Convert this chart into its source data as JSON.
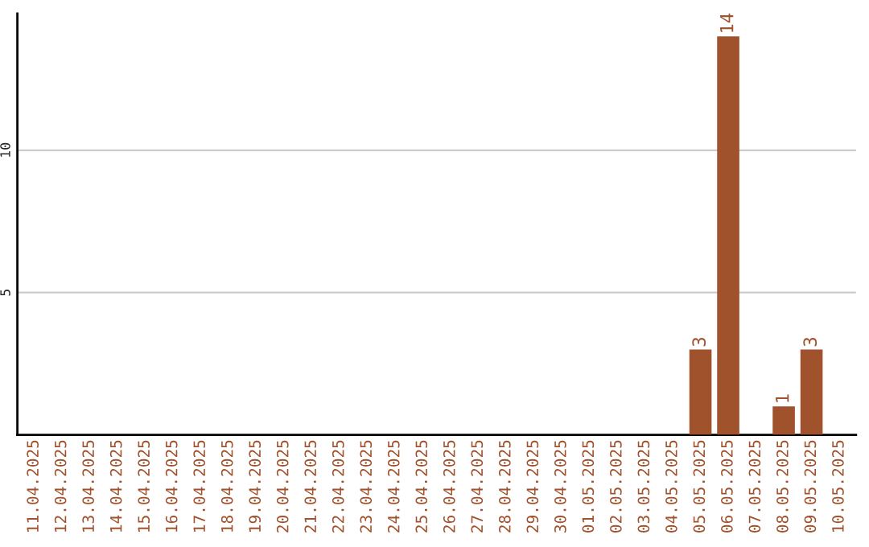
{
  "chart_data": {
    "type": "bar",
    "categories": [
      "11.04.2025",
      "12.04.2025",
      "13.04.2025",
      "14.04.2025",
      "15.04.2025",
      "16.04.2025",
      "17.04.2025",
      "18.04.2025",
      "19.04.2025",
      "20.04.2025",
      "21.04.2025",
      "22.04.2025",
      "23.04.2025",
      "24.04.2025",
      "25.04.2025",
      "26.04.2025",
      "27.04.2025",
      "28.04.2025",
      "29.04.2025",
      "30.04.2025",
      "01.05.2025",
      "02.05.2025",
      "03.05.2025",
      "04.05.2025",
      "05.05.2025",
      "06.05.2025",
      "07.05.2025",
      "08.05.2025",
      "09.05.2025",
      "10.05.2025"
    ],
    "values": [
      0,
      0,
      0,
      0,
      0,
      0,
      0,
      0,
      0,
      0,
      0,
      0,
      0,
      0,
      0,
      0,
      0,
      0,
      0,
      0,
      0,
      0,
      0,
      0,
      3,
      14,
      0,
      1,
      3,
      0
    ],
    "value_labels": [
      null,
      null,
      null,
      null,
      null,
      null,
      null,
      null,
      null,
      null,
      null,
      null,
      null,
      null,
      null,
      null,
      null,
      null,
      null,
      null,
      null,
      null,
      null,
      null,
      "3",
      "14",
      null,
      "1",
      "3",
      null
    ],
    "color": "#a0522d",
    "ylim": [
      0,
      14.8
    ],
    "yticks": [
      5,
      10
    ],
    "grid": "y"
  }
}
